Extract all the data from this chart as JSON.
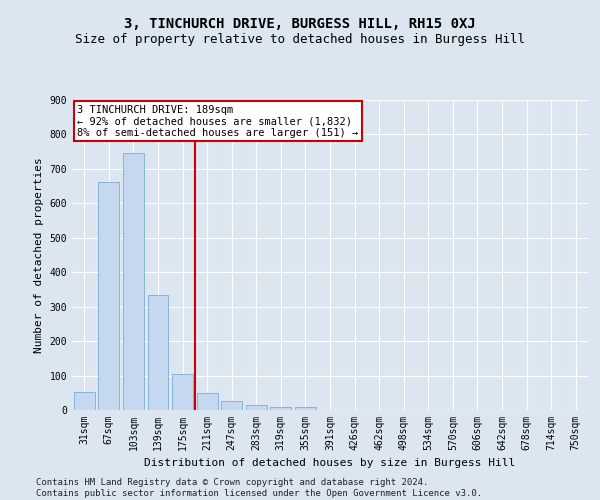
{
  "title": "3, TINCHURCH DRIVE, BURGESS HILL, RH15 0XJ",
  "subtitle": "Size of property relative to detached houses in Burgess Hill",
  "xlabel": "Distribution of detached houses by size in Burgess Hill",
  "ylabel": "Number of detached properties",
  "bar_values": [
    52,
    663,
    745,
    335,
    105,
    50,
    25,
    15,
    10,
    8,
    0,
    0,
    0,
    0,
    0,
    0,
    0,
    0,
    0,
    0,
    0
  ],
  "categories": [
    "31sqm",
    "67sqm",
    "103sqm",
    "139sqm",
    "175sqm",
    "211sqm",
    "247sqm",
    "283sqm",
    "319sqm",
    "355sqm",
    "391sqm",
    "426sqm",
    "462sqm",
    "498sqm",
    "534sqm",
    "570sqm",
    "606sqm",
    "642sqm",
    "678sqm",
    "714sqm",
    "750sqm"
  ],
  "bar_color": "#c5d8ef",
  "bar_edgecolor": "#7badd4",
  "vline_x": 4.5,
  "vline_color": "#cc0000",
  "annotation_text": "3 TINCHURCH DRIVE: 189sqm\n← 92% of detached houses are smaller (1,832)\n8% of semi-detached houses are larger (151) →",
  "annotation_box_facecolor": "#ffffff",
  "annotation_box_edgecolor": "#cc0000",
  "ylim": [
    0,
    900
  ],
  "yticks": [
    0,
    100,
    200,
    300,
    400,
    500,
    600,
    700,
    800,
    900
  ],
  "footer_line1": "Contains HM Land Registry data © Crown copyright and database right 2024.",
  "footer_line2": "Contains public sector information licensed under the Open Government Licence v3.0.",
  "background_color": "#dce6f0",
  "plot_background": "#dce6f0",
  "grid_color": "#ffffff",
  "title_fontsize": 10,
  "subtitle_fontsize": 9,
  "tick_fontsize": 7,
  "ylabel_fontsize": 8,
  "xlabel_fontsize": 8,
  "footer_fontsize": 6.5,
  "annotation_fontsize": 7.5
}
